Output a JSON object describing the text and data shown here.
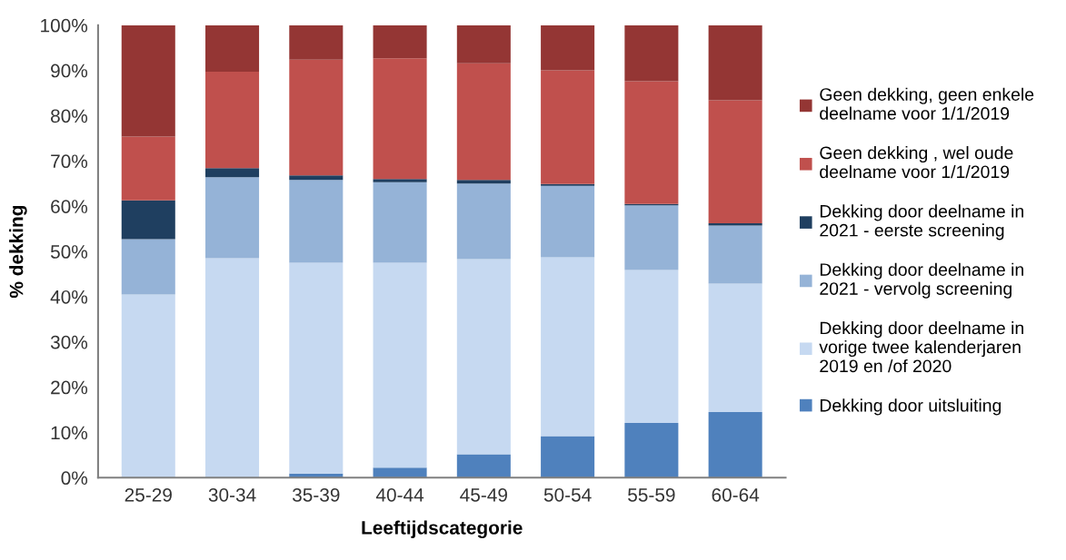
{
  "chart_data": {
    "type": "bar",
    "stacked": true,
    "xlabel": "Leeftijdscategorie",
    "ylabel": "% dekking",
    "categories": [
      "25-29",
      "30-34",
      "35-39",
      "40-44",
      "45-49",
      "50-54",
      "55-59",
      "60-64"
    ],
    "series": [
      {
        "name": "Dekking door uitsluiting",
        "color": "#4f81bd",
        "values": [
          0,
          0,
          0.9,
          2.2,
          5.2,
          9.2,
          12.1,
          14.5
        ]
      },
      {
        "name": "Dekking door deelname in\nvorige twee kalenderjaren\n2019 en /of 2020",
        "color": "#c6d9f1",
        "values": [
          40.5,
          48.5,
          46.6,
          45.3,
          43.1,
          39.5,
          33.8,
          28.4
        ]
      },
      {
        "name": "Dekking door deelname in\n2021 - vervolg screening",
        "color": "#95b3d7",
        "values": [
          12.2,
          17.9,
          18.3,
          17.8,
          16.7,
          15.8,
          14.3,
          12.8
        ]
      },
      {
        "name": "Dekking door deelname in\n2021 - eerste screening",
        "color": "#1f3f60",
        "values": [
          8.6,
          2.0,
          1.0,
          0.7,
          0.8,
          0.4,
          0.3,
          0.5
        ]
      },
      {
        "name": "Geen dekking , wel oude\ndeelname voor 1/1/2019",
        "color": "#c0504d",
        "values": [
          14.1,
          21.3,
          25.6,
          26.7,
          25.8,
          25.1,
          27.1,
          27.2
        ]
      },
      {
        "name": "Geen dekking, geen enkele\ndeelname voor 1/1/2019",
        "color": "#943634",
        "values": [
          24.6,
          10.3,
          7.6,
          7.3,
          8.4,
          10.0,
          12.4,
          16.6
        ]
      }
    ],
    "ylim": [
      0,
      100
    ],
    "yticks": [
      {
        "value": 0,
        "label": "0%"
      },
      {
        "value": 10,
        "label": "10%"
      },
      {
        "value": 20,
        "label": "20%"
      },
      {
        "value": 30,
        "label": "30%"
      },
      {
        "value": 40,
        "label": "40%"
      },
      {
        "value": 50,
        "label": "50%"
      },
      {
        "value": 60,
        "label": "60%"
      },
      {
        "value": 70,
        "label": "70%"
      },
      {
        "value": 80,
        "label": "80%"
      },
      {
        "value": 90,
        "label": "90%"
      },
      {
        "value": 100,
        "label": "100%"
      }
    ],
    "grid": false,
    "legend": "right"
  }
}
